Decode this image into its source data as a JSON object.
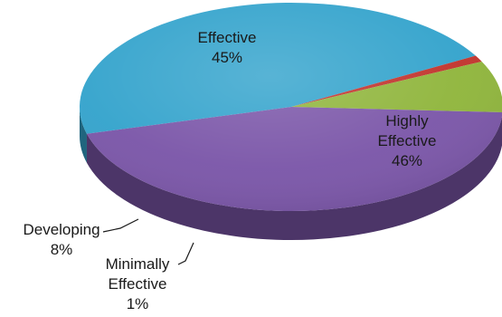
{
  "chart_data": {
    "type": "pie",
    "style": "3d",
    "slices": [
      {
        "name": "Highly Effective",
        "label_lines": [
          "Highly",
          "Effective"
        ],
        "value": 46,
        "pct_label": "46%",
        "color": "#33a3cc"
      },
      {
        "name": "Minimally Effective",
        "label_lines": [
          "Minimally",
          "Effective"
        ],
        "value": 1,
        "pct_label": "1%",
        "color": "#c1332c"
      },
      {
        "name": "Developing",
        "label_lines": [
          "Developing"
        ],
        "value": 8,
        "pct_label": "8%",
        "color": "#8fb53b"
      },
      {
        "name": "Effective",
        "label_lines": [
          "Effective"
        ],
        "value": 45,
        "pct_label": "45%",
        "color": "#7a55a8"
      }
    ]
  }
}
